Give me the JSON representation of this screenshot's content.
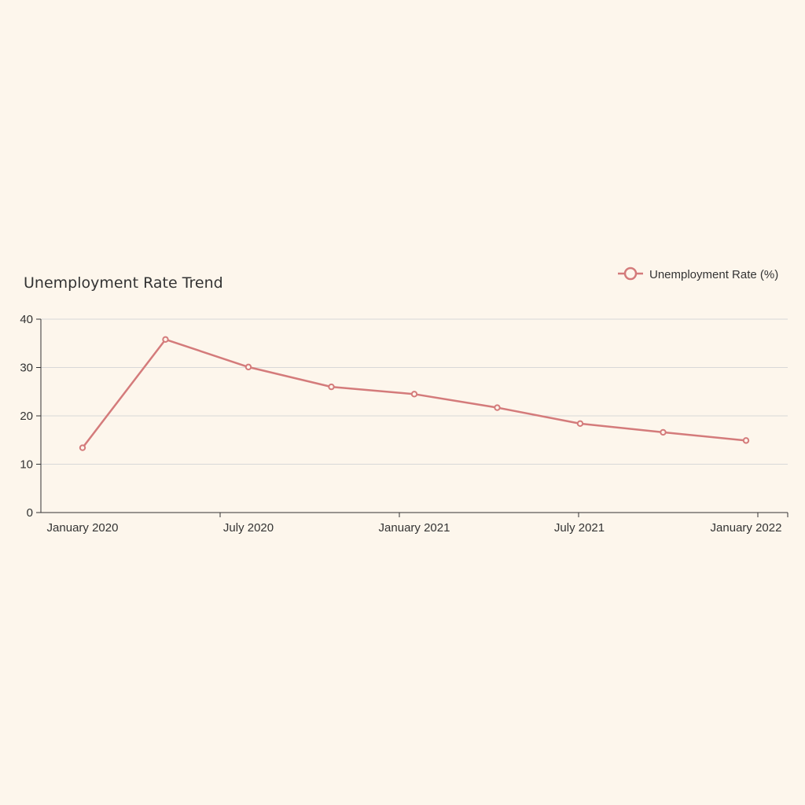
{
  "colors": {
    "background": "#fdf6ec",
    "series": "#d47b7b",
    "grid": "#d8d8d8",
    "axis": "#333333",
    "text": "#333333"
  },
  "chart_data": {
    "type": "line",
    "title": "Unemployment Rate Trend",
    "xlabel": "",
    "ylabel": "",
    "ylim": [
      0,
      40
    ],
    "yticks": [
      0,
      10,
      20,
      30,
      40
    ],
    "x_ticks": [
      "January 2020",
      "July 2020",
      "January 2021",
      "July 2021",
      "January 2022"
    ],
    "x_range": [
      "2019-12",
      "2022-01"
    ],
    "grid": true,
    "legend_position": "top-right",
    "series": [
      {
        "name": "Unemployment Rate (%)",
        "color": "#d47b7b",
        "points": [
          {
            "x": "2020-01",
            "y": 13.4
          },
          {
            "x": "2020-04",
            "y": 35.8
          },
          {
            "x": "2020-07",
            "y": 30.1
          },
          {
            "x": "2020-10",
            "y": 26.0
          },
          {
            "x": "2021-01",
            "y": 24.5
          },
          {
            "x": "2021-04",
            "y": 21.7
          },
          {
            "x": "2021-07",
            "y": 18.4
          },
          {
            "x": "2021-10",
            "y": 16.6
          },
          {
            "x": "2022-01",
            "y": 14.9
          }
        ]
      }
    ]
  }
}
